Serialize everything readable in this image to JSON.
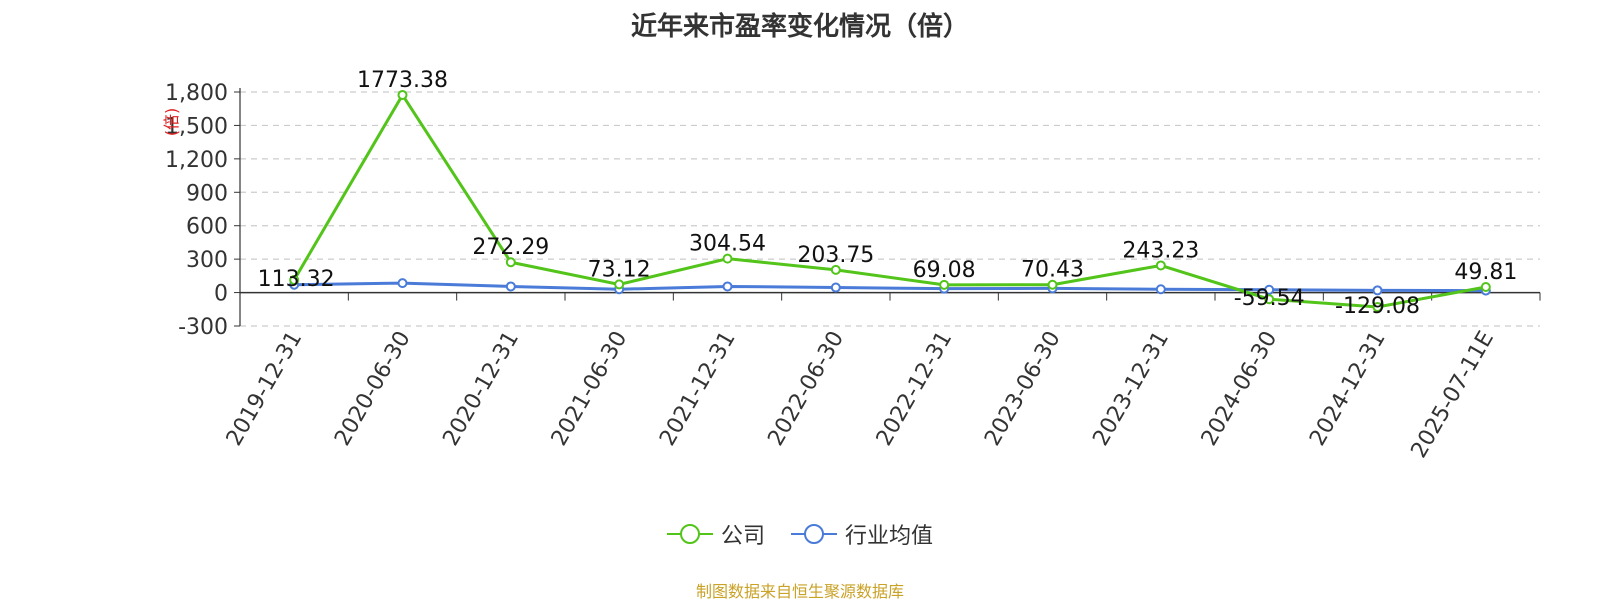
{
  "chart_data": {
    "type": "line",
    "title": "近年来市盈率变化情况（倍）",
    "ylabel": "(倍)",
    "categories": [
      "2019-12-31",
      "2020-06-30",
      "2020-12-31",
      "2021-06-30",
      "2021-12-31",
      "2022-06-30",
      "2022-12-31",
      "2023-06-30",
      "2023-12-31",
      "2024-06-30",
      "2024-12-31",
      "2025-07-11E"
    ],
    "yticks": [
      "-300",
      "0",
      "300",
      "600",
      "900",
      "1,200",
      "1,500",
      "1,800"
    ],
    "ylim": [
      -300,
      1800
    ],
    "grid": true,
    "legend_position": "bottom",
    "series": [
      {
        "name": "公司",
        "color": "#52c41a",
        "values": [
          113.32,
          1773.38,
          272.29,
          73.12,
          304.54,
          203.75,
          69.08,
          70.43,
          243.23,
          -59.54,
          -129.08,
          49.81
        ],
        "labels": [
          "113.32",
          "1773.38",
          "272.29",
          "73.12",
          "304.54",
          "203.75",
          "69.08",
          "70.43",
          "243.23",
          "-59.54",
          "-129.08",
          "49.81"
        ]
      },
      {
        "name": "行业均值",
        "color": "#4a7bd8",
        "values": [
          70,
          85,
          55,
          30,
          55,
          45,
          35,
          38,
          30,
          25,
          20,
          18
        ]
      }
    ]
  },
  "source": "制图数据来自恒生聚源数据库"
}
